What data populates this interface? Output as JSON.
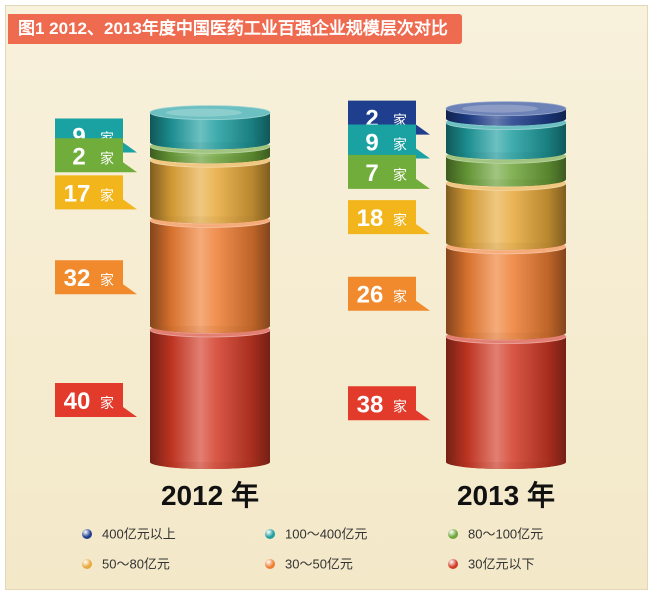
{
  "title": "图1 2012、2013年度中国医药工业百强企业规模层次对比",
  "unit": "家",
  "chart_data": {
    "type": "bar",
    "subtype": "stacked-cylinder",
    "title": "图1 2012、2013年度中国医药工业百强企业规模层次对比",
    "categories": [
      "2012 年",
      "2013 年"
    ],
    "series": [
      {
        "name": "400亿元以上",
        "color": "#1f3f8e",
        "values": [
          0,
          2
        ]
      },
      {
        "name": "100～400亿元",
        "color": "#1f9ea0",
        "values": [
          9,
          9
        ]
      },
      {
        "name": "80～100亿元",
        "color": "#6fa63b",
        "values": [
          2,
          7
        ]
      },
      {
        "name": "50～80亿元",
        "color": "#e7a93b",
        "values": [
          17,
          18
        ]
      },
      {
        "name": "30～50亿元",
        "color": "#ef7e33",
        "values": [
          32,
          26
        ]
      },
      {
        "name": "30亿元以下",
        "color": "#d23a26",
        "values": [
          40,
          38
        ]
      }
    ],
    "labels": [
      {
        "category": 0,
        "series": "100～400亿元",
        "number": "9",
        "color": "#1aa1a1"
      },
      {
        "category": 0,
        "series": "80～100亿元",
        "number": "2",
        "color": "#71ad3a"
      },
      {
        "category": 0,
        "series": "50～80亿元",
        "number": "17",
        "color": "#f2b51c"
      },
      {
        "category": 0,
        "series": "30～50亿元",
        "number": "32",
        "color": "#f08a2d"
      },
      {
        "category": 0,
        "series": "30亿元以下",
        "number": "40",
        "color": "#e23b2b"
      },
      {
        "category": 1,
        "series": "400亿元以上",
        "number": "2",
        "color": "#1f3f8e"
      },
      {
        "category": 1,
        "series": "100～400亿元",
        "number": "9",
        "color": "#1aa1a1"
      },
      {
        "category": 1,
        "series": "80～100亿元",
        "number": "7",
        "color": "#71ad3a"
      },
      {
        "category": 1,
        "series": "50～80亿元",
        "number": "18",
        "color": "#f2b51c"
      },
      {
        "category": 1,
        "series": "30～50亿元",
        "number": "26",
        "color": "#f08a2d"
      },
      {
        "category": 1,
        "series": "30亿元以下",
        "number": "38",
        "color": "#e23b2b"
      }
    ]
  },
  "legend": [
    {
      "label": "400亿元以上",
      "color": "#1f3f8e"
    },
    {
      "label": "100～400亿元",
      "color": "#1f9ea0"
    },
    {
      "label": "80～100亿元",
      "color": "#6fa63b"
    },
    {
      "label": "50～80亿元",
      "color": "#e7a93b"
    },
    {
      "label": "30～50亿元",
      "color": "#ef7e33"
    },
    {
      "label": "30亿元以下",
      "color": "#d23a26"
    }
  ]
}
